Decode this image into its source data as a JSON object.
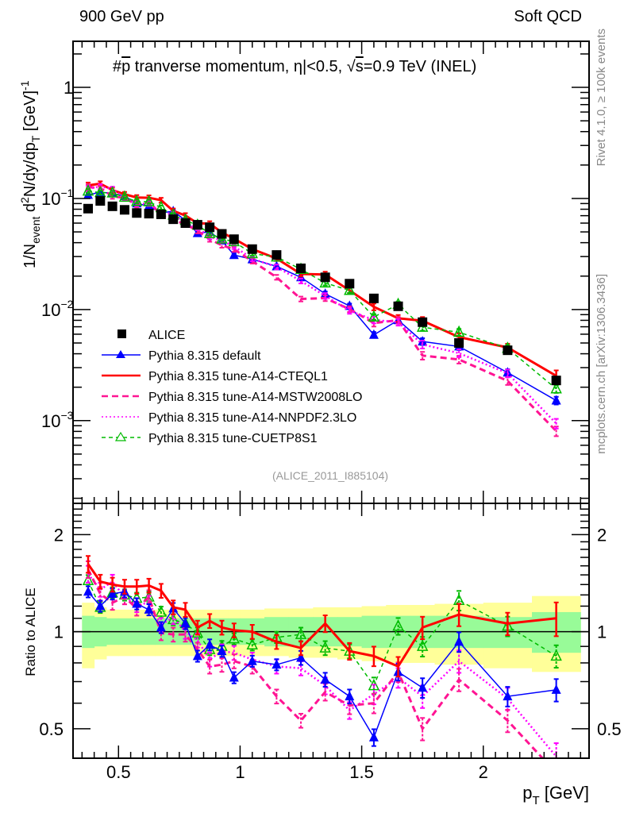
{
  "header": {
    "left": "900 GeV pp",
    "right": "Soft QCD"
  },
  "side_labels": {
    "rivet": "Rivet 4.1.0, ≥ 100k events",
    "mcplots": "mcplots.cern.ch [arXiv:1306.3436]"
  },
  "colors": {
    "alice": "#000000",
    "default": "#0000ff",
    "cteql1": "#ff0000",
    "mstw": "#ff1493",
    "nnpdf": "#ff00ff",
    "cuetp8s1": "#00bb00",
    "band_inner": "#98fb98",
    "band_outer": "#ffff99",
    "watermark": "#888888"
  },
  "chart_data": [
    {
      "type": "scatter",
      "panel": "main",
      "title": "#p̅ tranverse momentum, |η|<0.5, √s=0.9 TeV (INEL)",
      "title_parts": {
        "prefix": "#",
        "pbar": "p",
        "body": " tranverse momentum, ",
        "eta": "η",
        "eta_cut": "|<0.5, ",
        "sqrt": "√",
        "s": "s",
        "energy": "=0.9 TeV (INEL)"
      },
      "ylabel_parts": {
        "a": "1/N",
        "a_sub": "event",
        "b": " d",
        "b_sup": "2",
        "c": "N/dy/dp",
        "c_sub": "T",
        "d": " [GeV]",
        "d_sup": "-1"
      },
      "yscale": "log",
      "ylim": [
        0.00018,
        2.6
      ],
      "xlim": [
        0.313,
        2.435
      ],
      "yticks": [
        {
          "value": 1,
          "label": "1",
          "sup": ""
        },
        {
          "value": 0.1,
          "label": "10",
          "sup": "−1"
        },
        {
          "value": 0.01,
          "label": "10",
          "sup": "−2"
        },
        {
          "value": 0.001,
          "label": "10",
          "sup": "−3"
        }
      ],
      "annotation": "(ALICE_2011_I885104)",
      "legend": {
        "placement": "bottom-left",
        "entries": [
          {
            "key": "alice",
            "label": "ALICE"
          },
          {
            "key": "default",
            "label": "Pythia 8.315 default"
          },
          {
            "key": "cteql1",
            "label": "Pythia 8.315 tune-A14-CTEQL1"
          },
          {
            "key": "mstw",
            "label": "Pythia 8.315 tune-A14-MSTW2008LO"
          },
          {
            "key": "nnpdf",
            "label": "Pythia 8.315 tune-A14-NNPDF2.3LO"
          },
          {
            "key": "cuetp8s1",
            "label": "Pythia 8.315 tune-CUETP8S1"
          }
        ]
      },
      "x": [
        0.375,
        0.425,
        0.475,
        0.525,
        0.575,
        0.625,
        0.675,
        0.725,
        0.775,
        0.825,
        0.875,
        0.925,
        0.975,
        1.05,
        1.15,
        1.25,
        1.35,
        1.45,
        1.55,
        1.65,
        1.75,
        1.9,
        2.1,
        2.3
      ],
      "x_edges": [
        0.35,
        0.4,
        0.45,
        0.5,
        0.55,
        0.6,
        0.65,
        0.7,
        0.75,
        0.8,
        0.85,
        0.9,
        0.95,
        1.0,
        1.1,
        1.2,
        1.3,
        1.4,
        1.5,
        1.6,
        1.7,
        1.8,
        2.0,
        2.2,
        2.4
      ],
      "alice": [
        0.081,
        0.095,
        0.085,
        0.079,
        0.074,
        0.073,
        0.072,
        0.065,
        0.06,
        0.058,
        0.055,
        0.048,
        0.043,
        0.035,
        0.031,
        0.0235,
        0.0195,
        0.0171,
        0.0126,
        0.0107,
        0.0077,
        0.005,
        0.0043,
        0.0023
      ]
    },
    {
      "type": "line",
      "panel": "ratio",
      "ylabel": "Ratio to ALICE",
      "xlabel": "p",
      "xlabel_sub": "T",
      "xlabel_unit": " [GeV]",
      "yscale": "log",
      "ylim": [
        0.405,
        2.5
      ],
      "yticks": [
        {
          "value": 2,
          "label": "2"
        },
        {
          "value": 1,
          "label": "1"
        },
        {
          "value": 0.5,
          "label": "0.5"
        }
      ],
      "xticks": [
        {
          "value": 0.5,
          "label": "0.5"
        },
        {
          "value": 1,
          "label": "1"
        },
        {
          "value": 1.5,
          "label": "1.5"
        },
        {
          "value": 2,
          "label": "2"
        }
      ],
      "band_inner": {
        "upper": [
          1.12,
          1.11,
          1.1,
          1.1,
          1.1,
          1.1,
          1.1,
          1.1,
          1.1,
          1.1,
          1.1,
          1.1,
          1.1,
          1.1,
          1.11,
          1.11,
          1.11,
          1.11,
          1.12,
          1.12,
          1.12,
          1.12,
          1.11,
          1.15
        ],
        "lower": [
          0.89,
          0.9,
          0.91,
          0.91,
          0.91,
          0.91,
          0.91,
          0.91,
          0.91,
          0.91,
          0.91,
          0.91,
          0.91,
          0.91,
          0.9,
          0.9,
          0.9,
          0.9,
          0.89,
          0.89,
          0.89,
          0.89,
          0.89,
          0.86
        ]
      },
      "band_outer": {
        "upper": [
          1.23,
          1.19,
          1.17,
          1.17,
          1.17,
          1.17,
          1.17,
          1.17,
          1.17,
          1.17,
          1.17,
          1.17,
          1.17,
          1.17,
          1.18,
          1.18,
          1.19,
          1.19,
          1.2,
          1.21,
          1.21,
          1.22,
          1.23,
          1.29
        ],
        "lower": [
          0.77,
          0.82,
          0.84,
          0.84,
          0.84,
          0.84,
          0.84,
          0.84,
          0.84,
          0.84,
          0.84,
          0.84,
          0.84,
          0.84,
          0.84,
          0.83,
          0.83,
          0.82,
          0.81,
          0.8,
          0.8,
          0.79,
          0.77,
          0.75
        ]
      },
      "series": [
        {
          "key": "default",
          "name": "Pythia 8.315 default",
          "marker": "triangle-filled",
          "dash": "solid",
          "values": [
            1.33,
            1.2,
            1.31,
            1.33,
            1.22,
            1.17,
            1.03,
            1.18,
            1.06,
            0.84,
            0.91,
            0.87,
            0.72,
            0.81,
            0.79,
            0.83,
            0.71,
            0.63,
            0.47,
            0.75,
            0.67,
            0.93,
            0.63,
            0.66
          ],
          "err": [
            0.04,
            0.04,
            0.04,
            0.04,
            0.04,
            0.04,
            0.04,
            0.04,
            0.04,
            0.04,
            0.04,
            0.04,
            0.04,
            0.04,
            0.04,
            0.05,
            0.05,
            0.05,
            0.06,
            0.06,
            0.07,
            0.07,
            0.07,
            0.08
          ]
        },
        {
          "key": "cteql1",
          "name": "Pythia 8.315 tune-A14-CTEQL1",
          "marker": "none",
          "dash": "solid",
          "values": [
            1.62,
            1.43,
            1.4,
            1.38,
            1.38,
            1.39,
            1.34,
            1.19,
            1.17,
            1.03,
            1.08,
            1.03,
            1.01,
            1.0,
            0.93,
            0.89,
            1.06,
            0.87,
            0.84,
            0.78,
            1.03,
            1.13,
            1.06,
            1.1
          ],
          "err": [
            0.06,
            0.05,
            0.05,
            0.05,
            0.05,
            0.05,
            0.05,
            0.05,
            0.05,
            0.05,
            0.05,
            0.05,
            0.05,
            0.05,
            0.05,
            0.05,
            0.06,
            0.06,
            0.07,
            0.07,
            0.08,
            0.08,
            0.08,
            0.12
          ]
        },
        {
          "key": "mstw",
          "name": "Pythia 8.315 tune-A14-MSTW2008LO",
          "marker": "none",
          "dash": "dashed",
          "values": [
            1.56,
            1.31,
            1.23,
            1.28,
            1.18,
            1.28,
            0.99,
            0.98,
            0.98,
            0.88,
            0.78,
            0.79,
            0.81,
            0.78,
            0.63,
            0.53,
            0.65,
            0.59,
            0.6,
            0.75,
            0.5,
            0.71,
            0.53,
            0.35
          ],
          "err": [
            0.06,
            0.05,
            0.05,
            0.05,
            0.05,
            0.05,
            0.05,
            0.05,
            0.05,
            0.05,
            0.05,
            0.05,
            0.05,
            0.05,
            0.05,
            0.05,
            0.06,
            0.06,
            0.07,
            0.07,
            0.08,
            0.08,
            0.08,
            0.1
          ]
        },
        {
          "key": "nnpdf",
          "name": "Pythia 8.315 tune-A14-NNPDF2.3LO",
          "marker": "none",
          "dash": "dotted",
          "values": [
            1.51,
            1.35,
            1.43,
            1.28,
            1.21,
            1.23,
            1.05,
            1.11,
            1.0,
            0.94,
            0.82,
            0.87,
            0.86,
            0.82,
            0.78,
            0.77,
            0.68,
            0.57,
            0.64,
            0.72,
            0.63,
            0.81,
            0.62,
            0.41
          ],
          "err": [
            0.06,
            0.05,
            0.05,
            0.05,
            0.05,
            0.05,
            0.05,
            0.05,
            0.05,
            0.05,
            0.05,
            0.05,
            0.05,
            0.05,
            0.05,
            0.05,
            0.06,
            0.06,
            0.07,
            0.07,
            0.08,
            0.08,
            0.08,
            0.1
          ]
        },
        {
          "key": "cuetp8s1",
          "name": "Pythia 8.315 tune-CUETP8S1",
          "marker": "triangle-open",
          "dash": "dashed-fine",
          "values": [
            1.44,
            1.19,
            1.32,
            1.3,
            1.27,
            1.28,
            1.15,
            1.09,
            1.06,
            0.99,
            0.88,
            0.9,
            0.95,
            0.91,
            0.96,
            0.98,
            0.89,
            0.87,
            0.68,
            1.04,
            0.9,
            1.25,
            1.04,
            0.84
          ],
          "err": [
            0.04,
            0.04,
            0.04,
            0.04,
            0.04,
            0.04,
            0.04,
            0.04,
            0.04,
            0.04,
            0.04,
            0.04,
            0.04,
            0.04,
            0.04,
            0.05,
            0.05,
            0.05,
            0.06,
            0.06,
            0.07,
            0.07,
            0.07,
            0.08
          ]
        }
      ]
    }
  ]
}
